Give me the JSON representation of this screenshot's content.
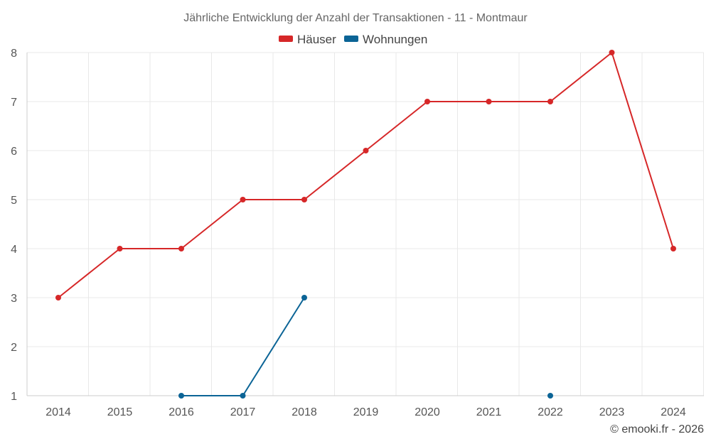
{
  "colors": {
    "houses": "#d62728",
    "apartments": "#0b6496"
  },
  "chart_data": {
    "type": "line",
    "title": "Jährliche Entwicklung der Anzahl der Transaktionen - 11 - Montmaur",
    "x": [
      "2014",
      "2015",
      "2016",
      "2017",
      "2018",
      "2019",
      "2020",
      "2021",
      "2022",
      "2023",
      "2024"
    ],
    "series": [
      {
        "name": "Häuser",
        "color": "#d62728",
        "values": [
          3,
          4,
          4,
          5,
          5,
          6,
          7,
          7,
          7,
          8,
          4
        ]
      },
      {
        "name": "Wohnungen",
        "color": "#0b6496",
        "values": [
          null,
          null,
          1,
          1,
          3,
          null,
          null,
          null,
          1,
          null,
          null
        ]
      }
    ],
    "ylim": [
      1,
      8
    ],
    "yticks": [
      "1",
      "2",
      "3",
      "4",
      "5",
      "6",
      "7",
      "8"
    ],
    "xlabel": "",
    "ylabel": "",
    "grid": true,
    "legend_position": "top-center"
  },
  "credit": "© emooki.fr - 2026"
}
